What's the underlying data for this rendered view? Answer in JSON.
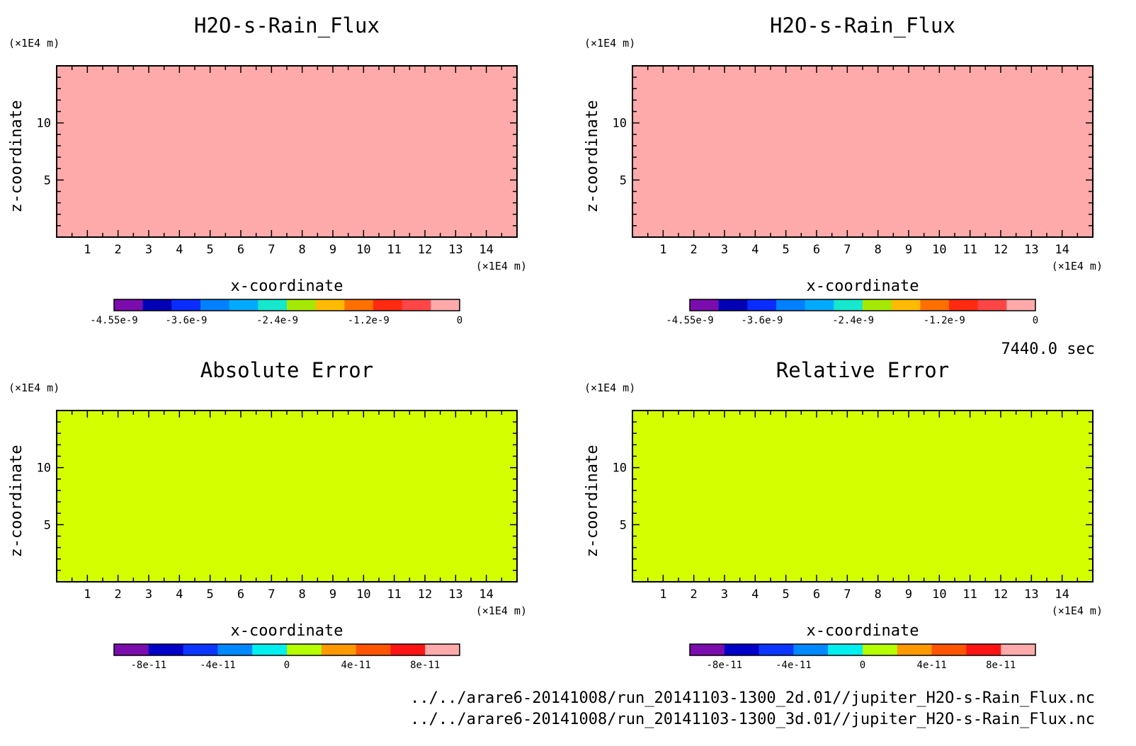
{
  "time_label": "7440.0 sec",
  "files": [
    "../../arare6-20141008/run_20141103-1300_2d.01//jupiter_H2O-s-Rain_Flux.nc",
    "../../arare6-20141008/run_20141103-1300_3d.01//jupiter_H2O-s-Rain_Flux.nc"
  ],
  "chart_data": [
    {
      "type": "heatmap",
      "title": "H2O-s-Rain_Flux",
      "xlabel": "x-coordinate",
      "ylabel": "z-coordinate",
      "x_unit": "(×1E4 m)",
      "y_unit": "(×1E4 m)",
      "xlim": [
        0,
        15
      ],
      "ylim": [
        0,
        15
      ],
      "xticks": [
        1,
        2,
        3,
        4,
        5,
        6,
        7,
        8,
        9,
        10,
        11,
        12,
        13,
        14
      ],
      "yticks": [
        5,
        10
      ],
      "field_color": "#ffaaaa",
      "colorbar": {
        "range": [
          -4.55e-09,
          0
        ],
        "colors": [
          "#7b0cad",
          "#0000b4",
          "#0a2cff",
          "#0080ff",
          "#00aaff",
          "#15e8cc",
          "#a5e800",
          "#ffbb00",
          "#ff7000",
          "#ff2a10",
          "#ff4646",
          "#ffaaaa"
        ],
        "labels": [
          {
            "value": -4.55e-09,
            "text": "-4.55e-9"
          },
          {
            "value": -3.6e-09,
            "text": "-3.6e-9"
          },
          {
            "value": -2.4e-09,
            "text": "-2.4e-9"
          },
          {
            "value": -1.2e-09,
            "text": "-1.2e-9"
          },
          {
            "value": 0,
            "text": "0"
          }
        ]
      }
    },
    {
      "type": "heatmap",
      "title": "H2O-s-Rain_Flux",
      "xlabel": "x-coordinate",
      "ylabel": "z-coordinate",
      "x_unit": "(×1E4 m)",
      "y_unit": "(×1E4 m)",
      "xlim": [
        0,
        15
      ],
      "ylim": [
        0,
        15
      ],
      "xticks": [
        1,
        2,
        3,
        4,
        5,
        6,
        7,
        8,
        9,
        10,
        11,
        12,
        13,
        14
      ],
      "yticks": [
        5,
        10
      ],
      "field_color": "#ffaaaa",
      "colorbar": {
        "range": [
          -4.55e-09,
          0
        ],
        "colors": [
          "#7b0cad",
          "#0000b4",
          "#0a2cff",
          "#0080ff",
          "#00aaff",
          "#15e8cc",
          "#a5e800",
          "#ffbb00",
          "#ff7000",
          "#ff2a10",
          "#ff4646",
          "#ffaaaa"
        ],
        "labels": [
          {
            "value": -4.55e-09,
            "text": "-4.55e-9"
          },
          {
            "value": -3.6e-09,
            "text": "-3.6e-9"
          },
          {
            "value": -2.4e-09,
            "text": "-2.4e-9"
          },
          {
            "value": -1.2e-09,
            "text": "-1.2e-9"
          },
          {
            "value": 0,
            "text": "0"
          }
        ]
      }
    },
    {
      "type": "heatmap",
      "title": "Absolute Error",
      "xlabel": "x-coordinate",
      "ylabel": "z-coordinate",
      "x_unit": "(×1E4 m)",
      "y_unit": "(×1E4 m)",
      "xlim": [
        0,
        15
      ],
      "ylim": [
        0,
        15
      ],
      "xticks": [
        1,
        2,
        3,
        4,
        5,
        6,
        7,
        8,
        9,
        10,
        11,
        12,
        13,
        14
      ],
      "yticks": [
        5,
        10
      ],
      "field_color": "#d4ff00",
      "colorbar": {
        "range": [
          -1e-10,
          1e-10
        ],
        "colors": [
          "#7b0cad",
          "#0000c8",
          "#0a36ff",
          "#0088ff",
          "#00f0f0",
          "#b4ff00",
          "#ff9900",
          "#ff5500",
          "#ff1414",
          "#ffaaaa"
        ],
        "labels": [
          {
            "value": -8e-11,
            "text": "-8e-11"
          },
          {
            "value": -4e-11,
            "text": "-4e-11"
          },
          {
            "value": 0,
            "text": "0"
          },
          {
            "value": 4e-11,
            "text": "4e-11"
          },
          {
            "value": 8e-11,
            "text": "8e-11"
          }
        ]
      }
    },
    {
      "type": "heatmap",
      "title": "Relative Error",
      "xlabel": "x-coordinate",
      "ylabel": "z-coordinate",
      "x_unit": "(×1E4 m)",
      "y_unit": "(×1E4 m)",
      "xlim": [
        0,
        15
      ],
      "ylim": [
        0,
        15
      ],
      "xticks": [
        1,
        2,
        3,
        4,
        5,
        6,
        7,
        8,
        9,
        10,
        11,
        12,
        13,
        14
      ],
      "yticks": [
        5,
        10
      ],
      "field_color": "#d4ff00",
      "colorbar": {
        "range": [
          -1e-10,
          1e-10
        ],
        "colors": [
          "#7b0cad",
          "#0000c8",
          "#0a36ff",
          "#0088ff",
          "#00f0f0",
          "#b4ff00",
          "#ff9900",
          "#ff5500",
          "#ff1414",
          "#ffaaaa"
        ],
        "labels": [
          {
            "value": -8e-11,
            "text": "-8e-11"
          },
          {
            "value": -4e-11,
            "text": "-4e-11"
          },
          {
            "value": 0,
            "text": "0"
          },
          {
            "value": 4e-11,
            "text": "4e-11"
          },
          {
            "value": 8e-11,
            "text": "8e-11"
          }
        ]
      }
    }
  ]
}
